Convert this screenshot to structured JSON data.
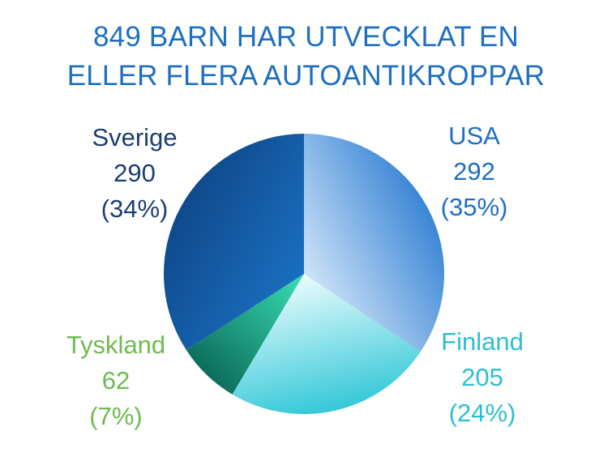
{
  "chart_data": {
    "type": "pie",
    "title_lines": [
      "849 BARN HAR UTVECKLAT EN",
      "ELLER FLERA AUTOANTIKROPPAR"
    ],
    "slices": [
      {
        "name": "USA",
        "value": 292,
        "percent_label": "(35%)",
        "color_light": "#cfe3f8",
        "color_dark": "#3a86d4",
        "label_color": "#1f6fc1"
      },
      {
        "name": "Finland",
        "value": 205,
        "percent_label": "(24%)",
        "color_light": "#eafcfd",
        "color_dark": "#33c8d8",
        "label_color": "#2bbfd0"
      },
      {
        "name": "Tyskland",
        "value": 62,
        "percent_label": "(7%)",
        "color_light": "#39dfb2",
        "color_dark": "#0d6e5e",
        "label_color": "#6dbb4f"
      },
      {
        "name": "Sverige",
        "value": 290,
        "percent_label": "(34%)",
        "color_light": "#1a6fc0",
        "color_dark": "#0f4a8c",
        "label_color": "#1b3f73"
      }
    ],
    "total": 849
  }
}
